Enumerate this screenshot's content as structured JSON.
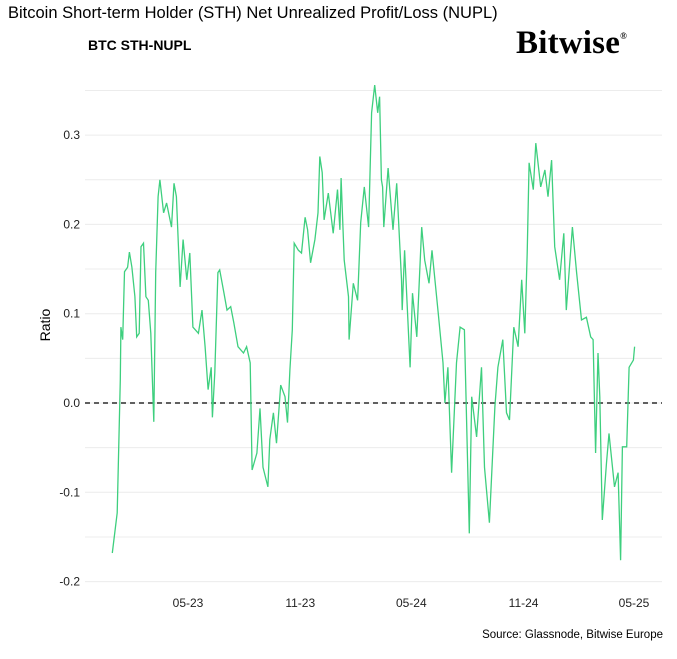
{
  "chart_data": {
    "type": "line",
    "title": "Bitcoin Short-term Holder (STH) Net Unrealized Profit/Loss (NUPL)",
    "subtitle": "BTC STH-NUPL",
    "xlabel": "",
    "ylabel": "Ratio",
    "source": "Source: Glassnode, Bitwise Europe",
    "logo": "Bitwise",
    "ylim": [
      -0.2,
      0.35
    ],
    "yticks": [
      "-0.2",
      "-0.1",
      "0.0",
      "0.1",
      "0.2",
      "0.3"
    ],
    "xticks": [
      {
        "label": "05-23",
        "date": "2023-05-01"
      },
      {
        "label": "11-23",
        "date": "2023-11-01"
      },
      {
        "label": "05-24",
        "date": "2024-05-01"
      },
      {
        "label": "11-24",
        "date": "2024-11-01"
      },
      {
        "label": "05-25",
        "date": "2025-05-01"
      }
    ],
    "grid": true,
    "reference_line": {
      "y": 0,
      "style": "dashed",
      "color": "#000000"
    },
    "line_color": "#3ecf7e",
    "series": [
      {
        "x": [
          "2022-12-28",
          "2023-01-05",
          "2023-01-10",
          "2023-01-11",
          "2023-01-14",
          "2023-01-17",
          "2023-01-22",
          "2023-01-25",
          "2023-01-29",
          "2023-02-03",
          "2023-02-06",
          "2023-02-10",
          "2023-02-13",
          "2023-02-17",
          "2023-02-21",
          "2023-02-25",
          "2023-03-01",
          "2023-03-06",
          "2023-03-09",
          "2023-03-13",
          "2023-03-16",
          "2023-03-22",
          "2023-03-27",
          "2023-04-04",
          "2023-04-08",
          "2023-04-12",
          "2023-04-18",
          "2023-04-23",
          "2023-04-29",
          "2023-05-04",
          "2023-05-09",
          "2023-05-18",
          "2023-05-24",
          "2023-05-29",
          "2023-06-03",
          "2023-06-08",
          "2023-06-10",
          "2023-06-14",
          "2023-06-19",
          "2023-06-22",
          "2023-06-29",
          "2023-07-04",
          "2023-07-10",
          "2023-07-15",
          "2023-07-22",
          "2023-07-31",
          "2023-08-05",
          "2023-08-11",
          "2023-08-14",
          "2023-08-22",
          "2023-08-27",
          "2023-09-01",
          "2023-09-09",
          "2023-09-12",
          "2023-09-18",
          "2023-09-23",
          "2023-09-30",
          "2023-10-07",
          "2023-10-11",
          "2023-10-15",
          "2023-10-19",
          "2023-10-22",
          "2023-10-29",
          "2023-11-03",
          "2023-11-09",
          "2023-11-13",
          "2023-11-18",
          "2023-11-25",
          "2023-11-30",
          "2023-12-03",
          "2023-12-07",
          "2023-12-10",
          "2023-12-17",
          "2023-12-25",
          "2024-01-01",
          "2024-01-05",
          "2024-01-07",
          "2024-01-12",
          "2024-01-19",
          "2024-01-20",
          "2024-01-27",
          "2024-02-03",
          "2024-02-08",
          "2024-02-14",
          "2024-02-21",
          "2024-02-26",
          "2024-03-02",
          "2024-03-07",
          "2024-03-10",
          "2024-03-13",
          "2024-03-15",
          "2024-03-17",
          "2024-03-24",
          "2024-04-01",
          "2024-04-07",
          "2024-04-15",
          "2024-04-16",
          "2024-04-20",
          "2024-04-29",
          "2024-05-03",
          "2024-05-10",
          "2024-05-18",
          "2024-05-23",
          "2024-05-30",
          "2024-06-04",
          "2024-06-14",
          "2024-06-22",
          "2024-06-25",
          "2024-06-30",
          "2024-07-06",
          "2024-07-14",
          "2024-07-20",
          "2024-07-27",
          "2024-08-04",
          "2024-08-08",
          "2024-08-16",
          "2024-08-24",
          "2024-08-29",
          "2024-09-06",
          "2024-09-15",
          "2024-09-20",
          "2024-09-28",
          "2024-10-04",
          "2024-10-09",
          "2024-10-16",
          "2024-10-23",
          "2024-10-29",
          "2024-11-03",
          "2024-11-07",
          "2024-11-10",
          "2024-11-17",
          "2024-11-21",
          "2024-11-29",
          "2024-12-06",
          "2024-12-11",
          "2024-12-17",
          "2024-12-22",
          "2024-12-30",
          "2025-01-06",
          "2025-01-10",
          "2025-01-20",
          "2025-01-27",
          "2025-02-04",
          "2025-02-12",
          "2025-02-19",
          "2025-02-23",
          "2025-02-27",
          "2025-03-03",
          "2025-03-06",
          "2025-03-10",
          "2025-03-17",
          "2025-03-21",
          "2025-03-30",
          "2025-04-05",
          "2025-04-09",
          "2025-04-12",
          "2025-04-19",
          "2025-04-23",
          "2025-04-30",
          "2025-05-02"
        ],
        "y": [
          -0.168,
          -0.123,
          0.026,
          0.085,
          0.071,
          0.147,
          0.152,
          0.169,
          0.152,
          0.119,
          0.074,
          0.078,
          0.175,
          0.179,
          0.119,
          0.115,
          0.078,
          -0.021,
          0.146,
          0.231,
          0.25,
          0.213,
          0.224,
          0.197,
          0.246,
          0.231,
          0.13,
          0.183,
          0.138,
          0.168,
          0.085,
          0.078,
          0.104,
          0.063,
          0.015,
          0.04,
          -0.016,
          0.034,
          0.146,
          0.149,
          0.123,
          0.104,
          0.108,
          0.09,
          0.063,
          0.056,
          0.063,
          0.045,
          -0.075,
          -0.056,
          -0.006,
          -0.072,
          -0.094,
          -0.041,
          -0.011,
          -0.045,
          0.02,
          0.007,
          -0.022,
          0.037,
          0.082,
          0.179,
          0.171,
          0.168,
          0.208,
          0.194,
          0.157,
          0.183,
          0.213,
          0.276,
          0.258,
          0.205,
          0.235,
          0.19,
          0.239,
          0.194,
          0.252,
          0.16,
          0.119,
          0.071,
          0.134,
          0.115,
          0.202,
          0.242,
          0.197,
          0.325,
          0.356,
          0.325,
          0.343,
          0.25,
          0.242,
          0.197,
          0.263,
          0.194,
          0.246,
          0.138,
          0.104,
          0.171,
          0.04,
          0.123,
          0.074,
          0.197,
          0.16,
          0.134,
          0.171,
          0.101,
          0.045,
          0.0,
          0.04,
          -0.078,
          0.045,
          0.085,
          0.082,
          -0.146,
          0.007,
          -0.038,
          0.04,
          -0.072,
          -0.134,
          -0.004,
          0.04,
          0.071,
          -0.011,
          -0.019,
          0.085,
          0.063,
          0.138,
          0.078,
          0.168,
          0.269,
          0.239,
          0.291,
          0.242,
          0.261,
          0.231,
          0.272,
          0.175,
          0.138,
          0.19,
          0.104,
          0.197,
          0.146,
          0.093,
          0.096,
          0.074,
          0.071,
          -0.056,
          0.056,
          0.007,
          -0.131,
          -0.067,
          -0.034,
          -0.094,
          -0.078,
          -0.176,
          -0.049,
          -0.049,
          0.04,
          0.048,
          0.063
        ]
      }
    ]
  }
}
